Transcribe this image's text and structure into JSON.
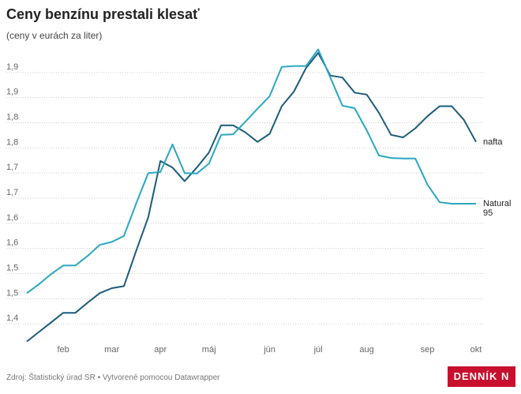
{
  "chart_data": {
    "type": "line",
    "title": "Ceny benzínu prestali klesať",
    "subtitle": "(ceny v eurách za liter)",
    "source": "Zdroj: Štatistický úrad SR • Vytvorené pomocou Datawrapper",
    "logo": "DENNÍK N",
    "categories": [
      null,
      null,
      null,
      "feb",
      null,
      null,
      null,
      "mar",
      null,
      null,
      null,
      "apr",
      null,
      null,
      null,
      "máj",
      null,
      null,
      null,
      null,
      "jún",
      null,
      null,
      null,
      "júl",
      null,
      null,
      null,
      "aug",
      null,
      null,
      null,
      null,
      "sep",
      null,
      null,
      null,
      "okt"
    ],
    "series": [
      {
        "name": "nafta",
        "color": "#1b5b7c",
        "values": [
          1.365,
          1.384,
          1.403,
          1.422,
          1.422,
          1.442,
          1.461,
          1.471,
          1.475,
          1.545,
          1.612,
          1.724,
          1.711,
          1.684,
          1.711,
          1.741,
          1.795,
          1.795,
          1.781,
          1.762,
          1.778,
          1.833,
          1.862,
          1.909,
          1.939,
          1.894,
          1.89,
          1.86,
          1.856,
          1.82,
          1.776,
          1.771,
          1.789,
          1.813,
          1.833,
          1.833,
          1.806,
          1.762
        ]
      },
      {
        "name": "Natural 95",
        "color": "#2aa7c2",
        "values": [
          1.461,
          1.479,
          1.499,
          1.516,
          1.516,
          1.535,
          1.557,
          1.563,
          1.575,
          1.639,
          1.7,
          1.702,
          1.757,
          1.7,
          1.699,
          1.719,
          1.776,
          1.777,
          1.802,
          1.828,
          1.853,
          1.911,
          1.913,
          1.913,
          1.946,
          1.89,
          1.834,
          1.829,
          1.785,
          1.735,
          1.73,
          1.729,
          1.729,
          1.677,
          1.642,
          1.639,
          1.639,
          1.639
        ]
      }
    ],
    "ylim": [
      1.35,
      1.95
    ],
    "yticks": [
      {
        "value": 1.4,
        "label": "1,4"
      },
      {
        "value": 1.45,
        "label": "1,5"
      },
      {
        "value": 1.5,
        "label": "1,5"
      },
      {
        "value": 1.55,
        "label": "1,6"
      },
      {
        "value": 1.6,
        "label": "1,6"
      },
      {
        "value": 1.65,
        "label": "1,7"
      },
      {
        "value": 1.7,
        "label": "1,7"
      },
      {
        "value": 1.75,
        "label": "1,8"
      },
      {
        "value": 1.8,
        "label": "1,8"
      },
      {
        "value": 1.85,
        "label": "1,9"
      },
      {
        "value": 1.9,
        "label": "1,9"
      }
    ],
    "grid": true
  }
}
